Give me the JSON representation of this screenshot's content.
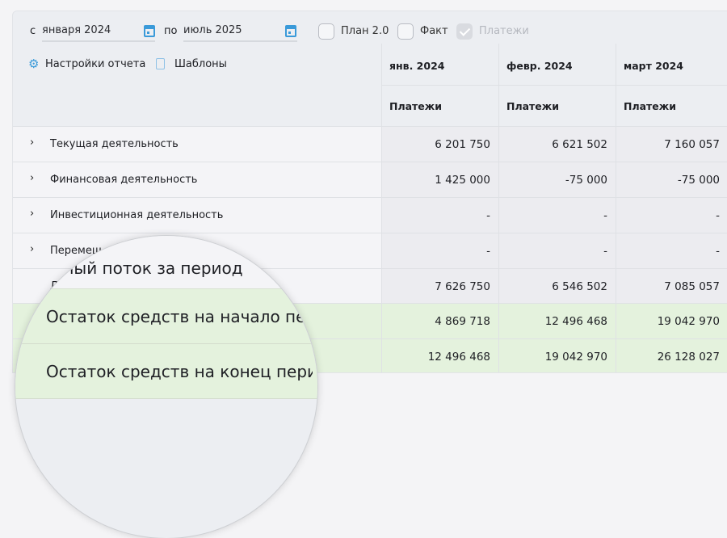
{
  "filters": {
    "from_label": "с",
    "from_value": "января 2024",
    "to_label": "по",
    "to_value": "июль 2025",
    "checkboxes": [
      {
        "label": "План 2.0",
        "checked": false,
        "disabled": false
      },
      {
        "label": "Факт",
        "checked": false,
        "disabled": false
      },
      {
        "label": "Платежи",
        "checked": true,
        "disabled": true
      }
    ]
  },
  "links": {
    "settings": "Настройки отчета",
    "templates": "Шаблоны"
  },
  "columns": [
    {
      "month": "янв. 2024",
      "sub": "Платежи"
    },
    {
      "month": "февр. 2024",
      "sub": "Платежи"
    },
    {
      "month": "март 2024",
      "sub": "Платежи"
    }
  ],
  "rows": [
    {
      "label": "Текущая деятельность",
      "values": [
        "6 201 750",
        "6 621 502",
        "7 160 057"
      ]
    },
    {
      "label": "Финансовая деятельность",
      "values": [
        "1 425 000",
        "-75 000",
        "-75 000"
      ]
    },
    {
      "label": "Инвестиционная деятельность",
      "values": [
        "-",
        "-",
        "-"
      ]
    },
    {
      "label": "Перемещ",
      "values": [
        "-",
        "-",
        "-"
      ]
    },
    {
      "label": "Д",
      "values": [
        "7 626 750",
        "6 546 502",
        "7 085 057"
      ]
    },
    {
      "label": "",
      "values": [
        "4 869 718",
        "12 496 468",
        "19 042 970"
      ]
    },
    {
      "label": "",
      "values": [
        "12 496 468",
        "19 042 970",
        "26 128 027"
      ]
    }
  ],
  "magnifier": {
    "lines": [
      "Денежный поток за период",
      "Остаток средств на начало периода",
      "Остаток средств на конец периода"
    ]
  },
  "colors": {
    "accent": "#3a9ad9",
    "green_row": "#e4f2dd"
  }
}
